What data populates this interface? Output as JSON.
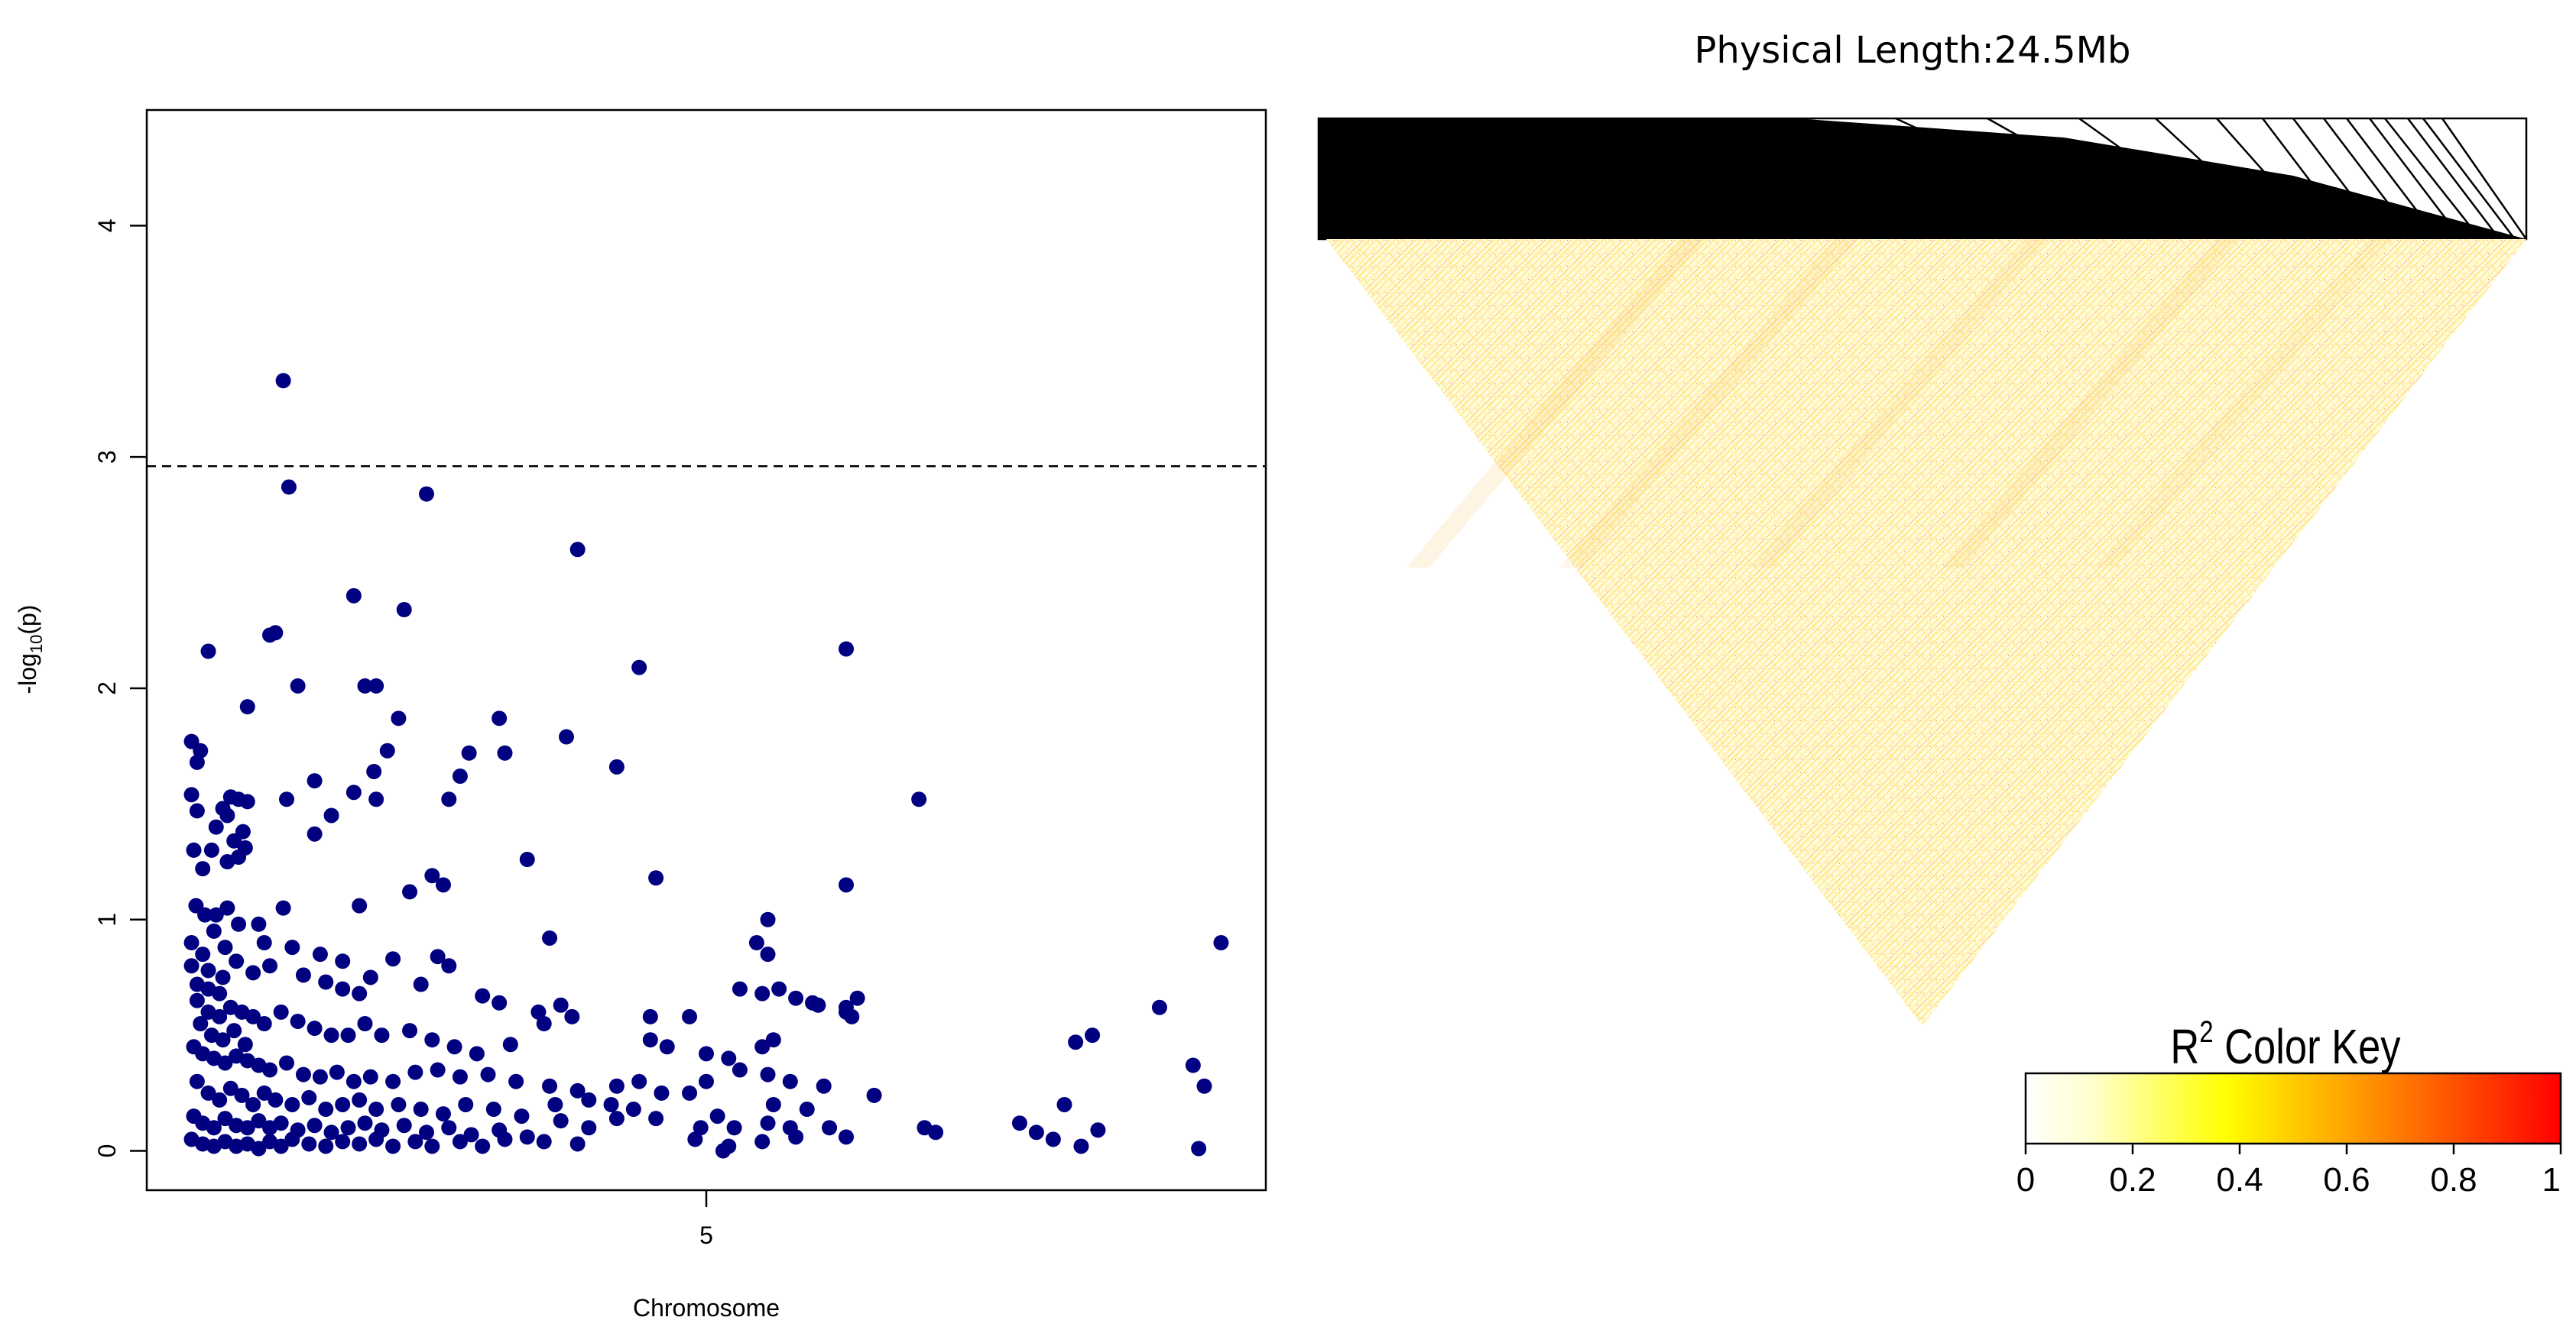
{
  "chart_data": [
    {
      "type": "scatter",
      "xlabel": "Chromosome",
      "ylabel": "-log",
      "ylabel_sub": "10",
      "ylabel_suffix": "(p)",
      "x_ticks": [
        5
      ],
      "y_ticks": [
        0,
        1,
        2,
        3,
        4
      ],
      "xlim": [
        0,
        10
      ],
      "ylim": [
        -0.17,
        4.5
      ],
      "threshold": 2.96,
      "point_color": "#000080",
      "points": [
        [
          1.22,
          3.33
        ],
        [
          1.27,
          2.87
        ],
        [
          2.5,
          2.84
        ],
        [
          3.85,
          2.6
        ],
        [
          1.85,
          2.4
        ],
        [
          2.3,
          2.34
        ],
        [
          1.1,
          2.23
        ],
        [
          1.15,
          2.24
        ],
        [
          0.55,
          2.16
        ],
        [
          6.25,
          2.17
        ],
        [
          4.4,
          2.09
        ],
        [
          1.35,
          2.01
        ],
        [
          1.95,
          2.01
        ],
        [
          2.05,
          2.01
        ],
        [
          0.9,
          1.92
        ],
        [
          2.25,
          1.87
        ],
        [
          3.15,
          1.87
        ],
        [
          3.75,
          1.79
        ],
        [
          0.4,
          1.77
        ],
        [
          0.48,
          1.73
        ],
        [
          0.45,
          1.68
        ],
        [
          2.15,
          1.73
        ],
        [
          2.88,
          1.72
        ],
        [
          3.2,
          1.72
        ],
        [
          4.2,
          1.66
        ],
        [
          1.5,
          1.6
        ],
        [
          2.03,
          1.64
        ],
        [
          2.8,
          1.62
        ],
        [
          0.4,
          1.54
        ],
        [
          0.45,
          1.47
        ],
        [
          0.68,
          1.48
        ],
        [
          0.75,
          1.53
        ],
        [
          0.82,
          1.52
        ],
        [
          0.9,
          1.51
        ],
        [
          0.72,
          1.45
        ],
        [
          0.62,
          1.4
        ],
        [
          0.86,
          1.38
        ],
        [
          0.78,
          1.34
        ],
        [
          0.88,
          1.31
        ],
        [
          0.72,
          1.25
        ],
        [
          0.82,
          1.27
        ],
        [
          1.25,
          1.52
        ],
        [
          1.5,
          1.37
        ],
        [
          1.65,
          1.45
        ],
        [
          1.85,
          1.55
        ],
        [
          2.05,
          1.52
        ],
        [
          2.7,
          1.52
        ],
        [
          6.9,
          1.52
        ],
        [
          3.4,
          1.26
        ],
        [
          2.55,
          1.19
        ],
        [
          2.65,
          1.15
        ],
        [
          4.55,
          1.18
        ],
        [
          6.25,
          1.15
        ],
        [
          0.42,
          1.3
        ],
        [
          0.5,
          1.22
        ],
        [
          0.58,
          1.3
        ],
        [
          0.44,
          1.06
        ],
        [
          0.52,
          1.02
        ],
        [
          0.62,
          1.02
        ],
        [
          0.72,
          1.05
        ],
        [
          0.82,
          0.98
        ],
        [
          1.0,
          0.98
        ],
        [
          1.22,
          1.05
        ],
        [
          1.9,
          1.06
        ],
        [
          2.35,
          1.12
        ],
        [
          3.6,
          0.92
        ],
        [
          5.55,
          1.0
        ],
        [
          5.45,
          0.9
        ],
        [
          5.55,
          0.85
        ],
        [
          9.6,
          0.9
        ],
        [
          1.05,
          0.9
        ],
        [
          1.3,
          0.88
        ],
        [
          1.55,
          0.85
        ],
        [
          1.75,
          0.82
        ],
        [
          2.2,
          0.83
        ],
        [
          2.6,
          0.84
        ],
        [
          2.7,
          0.8
        ],
        [
          0.4,
          0.8
        ],
        [
          0.55,
          0.78
        ],
        [
          0.68,
          0.75
        ],
        [
          0.8,
          0.82
        ],
        [
          0.95,
          0.77
        ],
        [
          1.1,
          0.8
        ],
        [
          1.4,
          0.76
        ],
        [
          1.6,
          0.73
        ],
        [
          2.0,
          0.75
        ],
        [
          1.75,
          0.7
        ],
        [
          1.9,
          0.68
        ],
        [
          2.45,
          0.72
        ],
        [
          3.0,
          0.67
        ],
        [
          3.15,
          0.64
        ],
        [
          3.5,
          0.6
        ],
        [
          3.7,
          0.63
        ],
        [
          4.5,
          0.58
        ],
        [
          4.85,
          0.58
        ],
        [
          5.3,
          0.7
        ],
        [
          5.5,
          0.68
        ],
        [
          5.65,
          0.7
        ],
        [
          5.8,
          0.66
        ],
        [
          5.95,
          0.64
        ],
        [
          6.25,
          0.62
        ],
        [
          6.3,
          0.58
        ],
        [
          6.0,
          0.63
        ],
        [
          0.45,
          0.65
        ],
        [
          0.55,
          0.6
        ],
        [
          0.65,
          0.58
        ],
        [
          0.75,
          0.62
        ],
        [
          0.85,
          0.6
        ],
        [
          0.95,
          0.58
        ],
        [
          1.05,
          0.55
        ],
        [
          1.2,
          0.6
        ],
        [
          1.35,
          0.56
        ],
        [
          1.5,
          0.53
        ],
        [
          1.65,
          0.5
        ],
        [
          1.8,
          0.5
        ],
        [
          1.95,
          0.55
        ],
        [
          2.1,
          0.5
        ],
        [
          2.35,
          0.52
        ],
        [
          2.55,
          0.48
        ],
        [
          2.75,
          0.45
        ],
        [
          2.95,
          0.42
        ],
        [
          3.25,
          0.46
        ],
        [
          3.55,
          0.55
        ],
        [
          3.8,
          0.58
        ],
        [
          4.5,
          0.48
        ],
        [
          4.65,
          0.45
        ],
        [
          5.0,
          0.42
        ],
        [
          5.2,
          0.4
        ],
        [
          5.5,
          0.45
        ],
        [
          5.6,
          0.48
        ],
        [
          6.25,
          0.6
        ],
        [
          6.35,
          0.66
        ],
        [
          9.05,
          0.62
        ],
        [
          8.3,
          0.47
        ],
        [
          8.45,
          0.5
        ],
        [
          9.35,
          0.37
        ],
        [
          0.42,
          0.45
        ],
        [
          0.5,
          0.42
        ],
        [
          0.6,
          0.4
        ],
        [
          0.7,
          0.38
        ],
        [
          0.8,
          0.41
        ],
        [
          0.9,
          0.39
        ],
        [
          1.0,
          0.37
        ],
        [
          1.1,
          0.35
        ],
        [
          1.25,
          0.38
        ],
        [
          1.4,
          0.33
        ],
        [
          1.55,
          0.32
        ],
        [
          1.7,
          0.34
        ],
        [
          1.85,
          0.3
        ],
        [
          2.0,
          0.32
        ],
        [
          2.2,
          0.3
        ],
        [
          2.4,
          0.34
        ],
        [
          2.6,
          0.35
        ],
        [
          2.8,
          0.32
        ],
        [
          3.05,
          0.33
        ],
        [
          3.3,
          0.3
        ],
        [
          3.6,
          0.28
        ],
        [
          3.85,
          0.26
        ],
        [
          4.2,
          0.28
        ],
        [
          4.4,
          0.3
        ],
        [
          4.6,
          0.25
        ],
        [
          4.85,
          0.25
        ],
        [
          5.0,
          0.3
        ],
        [
          5.3,
          0.35
        ],
        [
          5.55,
          0.33
        ],
        [
          5.75,
          0.3
        ],
        [
          6.05,
          0.28
        ],
        [
          6.5,
          0.24
        ],
        [
          9.45,
          0.28
        ],
        [
          8.2,
          0.2
        ],
        [
          0.45,
          0.3
        ],
        [
          0.55,
          0.25
        ],
        [
          0.65,
          0.22
        ],
        [
          0.75,
          0.27
        ],
        [
          0.85,
          0.24
        ],
        [
          0.95,
          0.2
        ],
        [
          1.05,
          0.25
        ],
        [
          1.15,
          0.22
        ],
        [
          1.3,
          0.2
        ],
        [
          1.45,
          0.23
        ],
        [
          1.6,
          0.18
        ],
        [
          1.75,
          0.2
        ],
        [
          1.9,
          0.22
        ],
        [
          2.05,
          0.18
        ],
        [
          2.25,
          0.2
        ],
        [
          2.45,
          0.18
        ],
        [
          2.65,
          0.16
        ],
        [
          2.85,
          0.2
        ],
        [
          3.1,
          0.18
        ],
        [
          3.35,
          0.15
        ],
        [
          3.65,
          0.2
        ],
        [
          3.95,
          0.22
        ],
        [
          4.15,
          0.2
        ],
        [
          4.35,
          0.18
        ],
        [
          5.1,
          0.15
        ],
        [
          5.6,
          0.2
        ],
        [
          5.9,
          0.18
        ],
        [
          0.42,
          0.15
        ],
        [
          0.5,
          0.12
        ],
        [
          0.6,
          0.1
        ],
        [
          0.7,
          0.14
        ],
        [
          0.8,
          0.11
        ],
        [
          0.9,
          0.1
        ],
        [
          1.0,
          0.13
        ],
        [
          1.1,
          0.1
        ],
        [
          1.2,
          0.12
        ],
        [
          1.35,
          0.09
        ],
        [
          1.5,
          0.11
        ],
        [
          1.65,
          0.08
        ],
        [
          1.8,
          0.1
        ],
        [
          1.95,
          0.12
        ],
        [
          2.1,
          0.09
        ],
        [
          2.3,
          0.11
        ],
        [
          2.5,
          0.08
        ],
        [
          2.7,
          0.1
        ],
        [
          2.9,
          0.07
        ],
        [
          3.15,
          0.09
        ],
        [
          3.4,
          0.06
        ],
        [
          3.7,
          0.13
        ],
        [
          3.95,
          0.1
        ],
        [
          4.2,
          0.14
        ],
        [
          4.55,
          0.14
        ],
        [
          4.95,
          0.1
        ],
        [
          5.25,
          0.1
        ],
        [
          5.55,
          0.12
        ],
        [
          5.75,
          0.1
        ],
        [
          6.1,
          0.1
        ],
        [
          6.25,
          0.06
        ],
        [
          6.95,
          0.1
        ],
        [
          7.05,
          0.08
        ],
        [
          7.8,
          0.12
        ],
        [
          7.95,
          0.08
        ],
        [
          8.1,
          0.05
        ],
        [
          8.35,
          0.02
        ],
        [
          8.5,
          0.09
        ],
        [
          9.4,
          0.01
        ],
        [
          0.4,
          0.05
        ],
        [
          0.5,
          0.03
        ],
        [
          0.6,
          0.02
        ],
        [
          0.7,
          0.04
        ],
        [
          0.8,
          0.02
        ],
        [
          0.9,
          0.03
        ],
        [
          1.0,
          0.01
        ],
        [
          1.1,
          0.04
        ],
        [
          1.2,
          0.02
        ],
        [
          1.3,
          0.05
        ],
        [
          1.45,
          0.03
        ],
        [
          1.6,
          0.02
        ],
        [
          1.75,
          0.04
        ],
        [
          1.9,
          0.03
        ],
        [
          2.05,
          0.05
        ],
        [
          2.2,
          0.02
        ],
        [
          2.4,
          0.04
        ],
        [
          2.55,
          0.02
        ],
        [
          2.8,
          0.04
        ],
        [
          3.0,
          0.02
        ],
        [
          3.2,
          0.05
        ],
        [
          3.55,
          0.04
        ],
        [
          3.85,
          0.03
        ],
        [
          4.9,
          0.05
        ],
        [
          5.15,
          0.0
        ],
        [
          5.2,
          0.02
        ],
        [
          5.5,
          0.04
        ],
        [
          5.8,
          0.06
        ],
        [
          0.4,
          0.9
        ],
        [
          0.5,
          0.85
        ],
        [
          0.6,
          0.95
        ],
        [
          0.7,
          0.88
        ],
        [
          0.45,
          0.72
        ],
        [
          0.55,
          0.7
        ],
        [
          0.65,
          0.68
        ],
        [
          0.48,
          0.55
        ],
        [
          0.58,
          0.5
        ],
        [
          0.68,
          0.48
        ],
        [
          0.78,
          0.52
        ],
        [
          0.88,
          0.46
        ]
      ]
    },
    {
      "type": "heatmap",
      "title": "Physical Length:24.5Mb",
      "legend_title": "R",
      "legend_title_sup": "2",
      "legend_title_suffix": " Color Key",
      "legend_ticks": [
        "0",
        "0.2",
        "0.4",
        "0.6",
        "0.8",
        "1"
      ],
      "color_scale": [
        "#ffffff",
        "#ffffcc",
        "#ffff66",
        "#ffff00",
        "#ffcc00",
        "#ff9900",
        "#ff6600",
        "#ff3300",
        "#ff0000"
      ]
    }
  ]
}
